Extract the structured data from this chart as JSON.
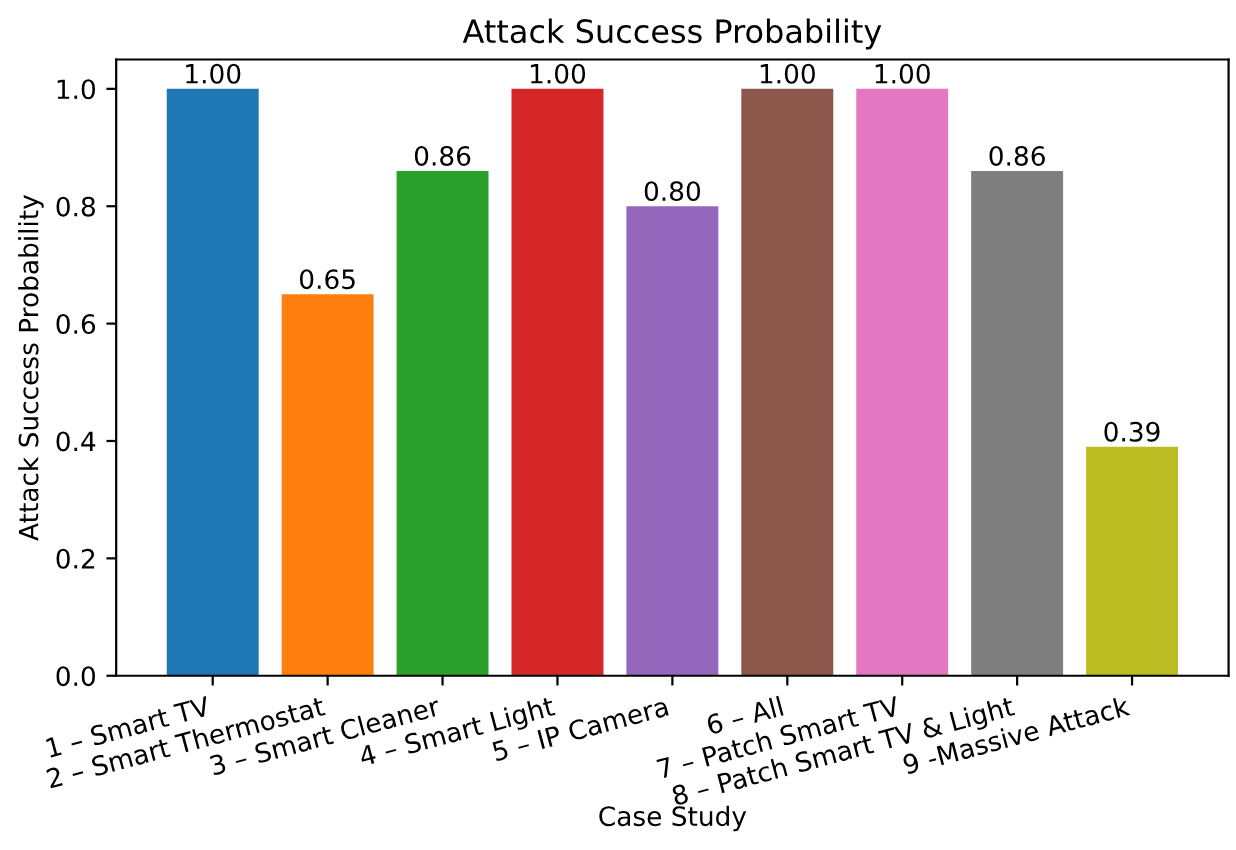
{
  "chart_data": {
    "type": "bar",
    "title": "Attack Success Probability",
    "xlabel": "Case Study",
    "ylabel": "Attack Success Probability",
    "categories": [
      "1 – Smart TV",
      "2 – Smart Thermostat",
      "3 – Smart Cleaner",
      "4 – Smart Light",
      "5 – IP Camera",
      "6 – All",
      "7 – Patch Smart TV",
      "8 – Patch Smart TV & Light",
      "9 -Massive Attack"
    ],
    "values": [
      1.0,
      0.65,
      0.86,
      1.0,
      0.8,
      1.0,
      1.0,
      0.86,
      0.39
    ],
    "value_labels": [
      "1.00",
      "0.65",
      "0.86",
      "1.00",
      "0.80",
      "1.00",
      "1.00",
      "0.86",
      "0.39"
    ],
    "colors": [
      "#1f77b4",
      "#ff7f0e",
      "#2ca02c",
      "#d62728",
      "#9467bd",
      "#8c564b",
      "#e377c2",
      "#7f7f7f",
      "#bcbd22"
    ],
    "ylim": [
      0,
      1.05
    ],
    "yticks": [
      {
        "value": 0,
        "label": "0.0"
      },
      {
        "value": 0.2,
        "label": "0.2"
      },
      {
        "value": 0.4,
        "label": "0.4"
      },
      {
        "value": 0.6,
        "label": "0.6"
      },
      {
        "value": 0.8,
        "label": "0.8"
      },
      {
        "value": 1.0,
        "label": "1.0"
      }
    ],
    "grid": false,
    "legend": false
  }
}
